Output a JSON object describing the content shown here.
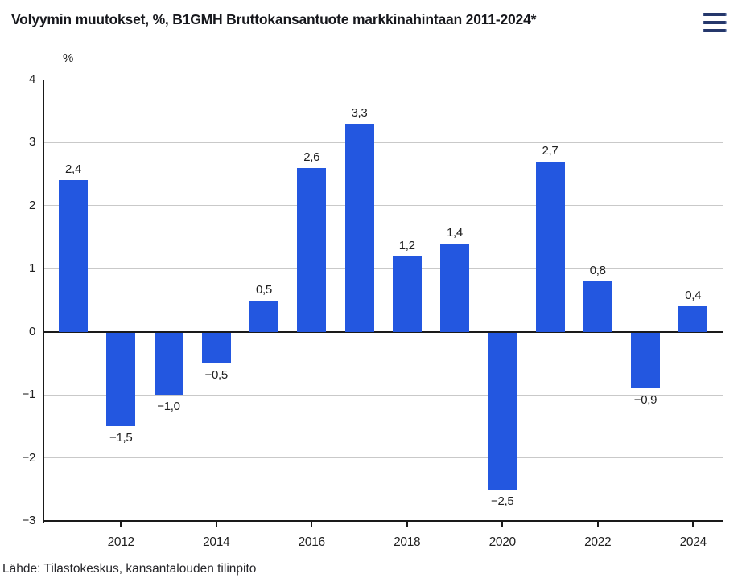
{
  "header": {
    "title": "Volyymin muutokset, %, B1GMH Bruttokansantuote markkinahintaan 2011-2024*",
    "menu_icon": "hamburger-menu-icon"
  },
  "chart_data": {
    "type": "bar",
    "title": "Volyymin muutokset, %, B1GMH Bruttokansantuote markkinahintaan 2011-2024*",
    "unit_label": "%",
    "xlabel": "",
    "ylabel": "%",
    "categories": [
      2011,
      2012,
      2013,
      2014,
      2015,
      2016,
      2017,
      2018,
      2019,
      2020,
      2021,
      2022,
      2023,
      2024
    ],
    "values": [
      2.4,
      -1.5,
      -1.0,
      -0.5,
      0.5,
      2.6,
      3.3,
      1.2,
      1.4,
      -2.5,
      2.7,
      0.8,
      -0.9,
      0.4
    ],
    "value_labels": [
      "2,4",
      "−1,5",
      "−1,0",
      "−0,5",
      "0,5",
      "2,6",
      "3,3",
      "1,2",
      "1,4",
      "−2,5",
      "2,7",
      "0,8",
      "−0,9",
      "0,4"
    ],
    "ylim": [
      -3,
      4
    ],
    "yticks": [
      4,
      3,
      2,
      1,
      0,
      -1,
      -2,
      -3
    ],
    "ytick_labels": [
      "4",
      "3",
      "2",
      "1",
      "0",
      "−1",
      "−2",
      "−3"
    ],
    "xtick_years": [
      2012,
      2014,
      2016,
      2018,
      2020,
      2022,
      2024
    ],
    "grid": true,
    "legend": false
  },
  "footer": {
    "source": "Lähde: Tilastokeskus, kansantalouden tilinpito"
  },
  "colors": {
    "bar": "#2357E0",
    "grid": "#C9C9C9",
    "axis": "#1A1A1A",
    "menu": "#25376B",
    "text": "#202020"
  }
}
